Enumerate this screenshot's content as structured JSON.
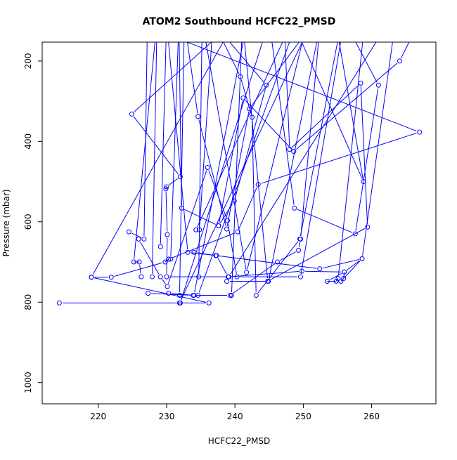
{
  "chart_data": {
    "type": "line",
    "title": "ATOM2 Southbound HCFC22_PMSD",
    "xlabel": "HCFC22_PMSD",
    "ylabel": "Pressure (mbar)",
    "xlim": [
      211.8,
      269.4
    ],
    "ylim": [
      1053,
      153
    ],
    "y_reversed": true,
    "x_ticks": [
      220,
      230,
      240,
      250,
      260
    ],
    "y_ticks": [
      200,
      400,
      600,
      800,
      1000
    ],
    "grid": false,
    "series_color": "#0000ff",
    "marker": "open-circle",
    "series": [
      {
        "values": [
          [
            214.3,
            802
          ],
          [
            236.2,
            802
          ],
          [
            219.0,
            738
          ],
          [
            221.9,
            738
          ],
          [
            229.8,
            700
          ],
          [
            230.3,
            693
          ],
          [
            240.4,
            625
          ],
          [
            243.4,
            507
          ],
          [
            267.0,
            377
          ],
          [
            225.0,
            100
          ]
        ]
      },
      {
        "values": [
          [
            219.0,
            738
          ],
          [
            240.0,
            100
          ],
          [
            224.9,
            332
          ],
          [
            232.0,
            488
          ],
          [
            230.0,
            513
          ],
          [
            229.9,
            518
          ],
          [
            230.1,
            632
          ],
          [
            230.0,
            737
          ],
          [
            239.1,
            737
          ],
          [
            262.6,
            100
          ]
        ]
      },
      {
        "values": [
          [
            224.5,
            625
          ],
          [
            226.7,
            643
          ],
          [
            227.2,
            100
          ]
        ]
      },
      {
        "values": [
          [
            225.9,
            643
          ],
          [
            229.1,
            737
          ],
          [
            230.1,
            761
          ],
          [
            236.0,
            465
          ],
          [
            238.9,
            597
          ],
          [
            240.3,
            737
          ],
          [
            249.6,
            737
          ],
          [
            256.0,
            100
          ]
        ]
      },
      {
        "values": [
          [
            227.3,
            778
          ],
          [
            233.9,
            783
          ],
          [
            239.3,
            783
          ],
          [
            246.2,
            700
          ],
          [
            249.3,
            671
          ],
          [
            249.6,
            643
          ],
          [
            252.5,
            100
          ]
        ]
      },
      {
        "values": [
          [
            227.9,
            737
          ],
          [
            228.6,
            100
          ],
          [
            225.2,
            700
          ],
          [
            226.0,
            700
          ],
          [
            226.3,
            737
          ]
        ]
      },
      {
        "values": [
          [
            229.1,
            662
          ],
          [
            230.0,
            100
          ],
          [
            233.1,
            676
          ],
          [
            237.3,
            684
          ],
          [
            239.0,
            737
          ],
          [
            249.8,
            723
          ],
          [
            256.0,
            725
          ],
          [
            258.6,
            692
          ],
          [
            263.5,
            100
          ]
        ]
      },
      {
        "values": [
          [
            230.6,
            693
          ],
          [
            231.8,
            100
          ],
          [
            232.2,
            566
          ],
          [
            237.6,
            610
          ],
          [
            241.2,
            292
          ],
          [
            248.6,
            425
          ],
          [
            264.1,
            200
          ],
          [
            267.0,
            100
          ]
        ]
      },
      {
        "values": [
          [
            231.9,
            783
          ],
          [
            232.6,
            100
          ],
          [
            234.6,
            338
          ],
          [
            238.8,
            618
          ],
          [
            242.1,
            319
          ],
          [
            251.7,
            100
          ]
        ]
      },
      {
        "values": [
          [
            232.0,
            802
          ],
          [
            245.0,
            100
          ],
          [
            248.7,
            566
          ],
          [
            257.6,
            630
          ],
          [
            261.0,
            260
          ],
          [
            256.0,
            100
          ]
        ]
      },
      {
        "values": [
          [
            234.0,
            676
          ],
          [
            237.2,
            684
          ],
          [
            252.4,
            717
          ],
          [
            258.6,
            692
          ],
          [
            255.5,
            748
          ],
          [
            255.9,
            741
          ],
          [
            256.0,
            725
          ],
          [
            253.5,
            748
          ],
          [
            254.8,
            748
          ],
          [
            255.1,
            741
          ],
          [
            259.0,
            100
          ]
        ]
      },
      {
        "values": [
          [
            234.8,
            620
          ],
          [
            236.8,
            100
          ],
          [
            240.8,
            239
          ],
          [
            242.5,
            340
          ],
          [
            243.1,
            783
          ],
          [
            249.5,
            643
          ],
          [
            255.6,
            100
          ]
        ]
      },
      {
        "values": [
          [
            234.7,
            737
          ],
          [
            235.2,
            100
          ],
          [
            241.7,
            726
          ],
          [
            250.6,
            100
          ]
        ]
      },
      {
        "values": [
          [
            239.5,
            783
          ],
          [
            241.1,
            100
          ],
          [
            244.8,
            748
          ],
          [
            259.4,
            613
          ],
          [
            258.4,
            255
          ],
          [
            248.0,
            420
          ],
          [
            247.2,
            100
          ]
        ]
      },
      {
        "values": [
          [
            237.6,
            610
          ],
          [
            239.9,
            548
          ],
          [
            244.6,
            260
          ],
          [
            236.6,
            100
          ]
        ]
      },
      {
        "values": [
          [
            234.3,
            620
          ],
          [
            248.4,
            100
          ],
          [
            258.8,
            500
          ],
          [
            254.7,
            100
          ]
        ]
      },
      {
        "values": [
          [
            238.8,
            748
          ],
          [
            244.9,
            748
          ],
          [
            252.6,
            100
          ]
        ]
      },
      {
        "values": [
          [
            231.9,
            802
          ],
          [
            251.3,
            100
          ]
        ]
      },
      {
        "values": [
          [
            234.6,
            783
          ],
          [
            249.1,
            100
          ]
        ]
      },
      {
        "values": [
          [
            230.3,
            778
          ],
          [
            234.0,
            783
          ],
          [
            241.8,
            100
          ]
        ]
      }
    ]
  }
}
